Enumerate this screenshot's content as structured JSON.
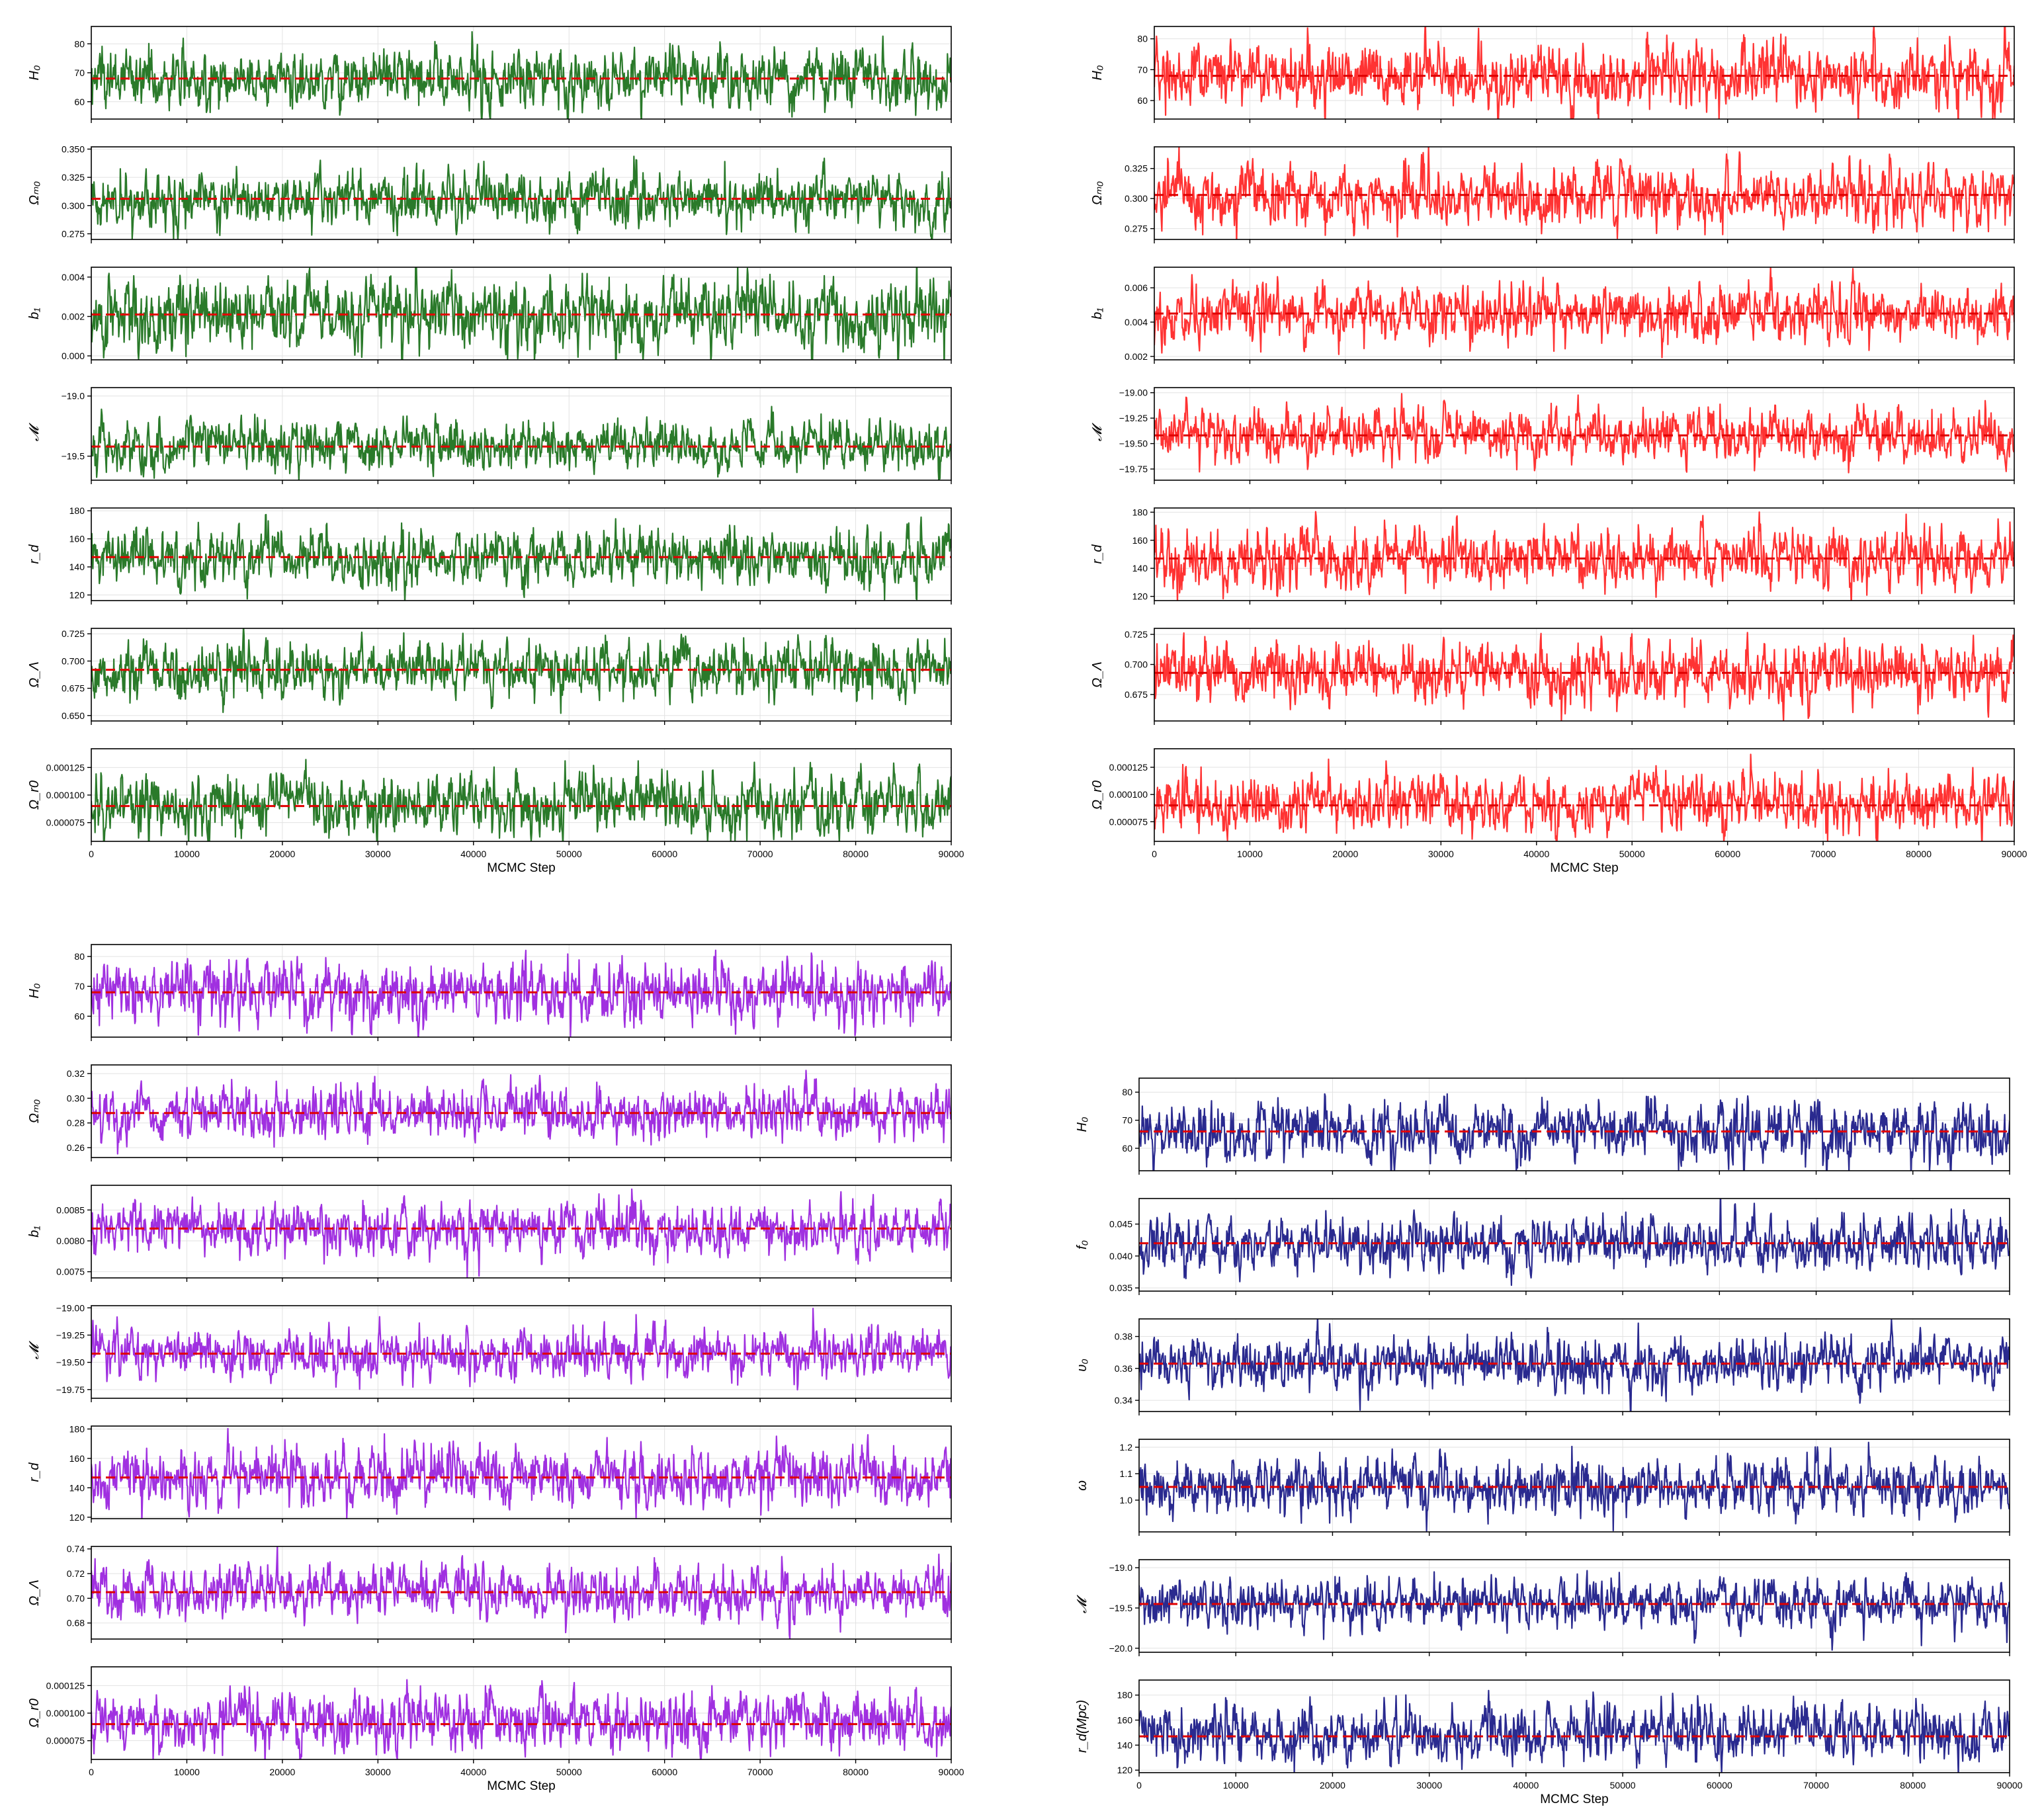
{
  "chart_data": [
    {
      "type": "line",
      "color": "#2a7a2a",
      "xlabel": "MCMC Step",
      "xlim": [
        0,
        90000
      ],
      "xticks": [
        "0",
        "10000",
        "20000",
        "30000",
        "40000",
        "50000",
        "60000",
        "70000",
        "80000",
        "90000"
      ],
      "panels": [
        {
          "ylabel": "H_0",
          "ylabel_display": "H₀",
          "ylim": [
            54,
            86
          ],
          "yticks": [
            "60",
            "70",
            "80"
          ],
          "center": 68,
          "spread": 5,
          "median": 68
        },
        {
          "ylabel": "Ω_m0",
          "ylabel_display": "Ωₘ₀",
          "ylim": [
            0.27,
            0.352
          ],
          "yticks": [
            "0.275",
            "0.300",
            "0.325",
            "0.350"
          ],
          "center": 0.306,
          "spread": 0.012,
          "median": 0.306
        },
        {
          "ylabel": "b_1",
          "ylabel_display": "b₁",
          "ylim": [
            -0.0002,
            0.0045
          ],
          "yticks": [
            "0.000",
            "0.002",
            "0.004"
          ],
          "center": 0.0021,
          "spread": 0.0009,
          "median": 0.0021
        },
        {
          "ylabel": "M",
          "ylabel_display": "𝓜",
          "ylim": [
            -19.7,
            -18.93
          ],
          "yticks": [
            "-19.5",
            "-19.0"
          ],
          "center": -19.42,
          "spread": 0.1,
          "median": -19.42
        },
        {
          "ylabel": "r_d",
          "ylabel_display": "r_d",
          "ylim": [
            116,
            182
          ],
          "yticks": [
            "120",
            "140",
            "160",
            "180"
          ],
          "center": 147,
          "spread": 10,
          "median": 147
        },
        {
          "ylabel": "Ω_Λ",
          "ylabel_display": "Ω_Λ",
          "ylim": [
            0.645,
            0.73
          ],
          "yticks": [
            "0.650",
            "0.675",
            "0.700",
            "0.725"
          ],
          "center": 0.692,
          "spread": 0.012,
          "median": 0.692
        },
        {
          "ylabel": "Ω_r0",
          "ylabel_display": "Ω_r0",
          "ylim": [
            5.8e-05,
            0.000142
          ],
          "yticks": [
            "0.000075",
            "0.000100",
            "0.000125"
          ],
          "center": 9.2e-05,
          "spread": 1.3e-05,
          "median": 9e-05
        }
      ]
    },
    {
      "type": "line",
      "color": "#ff3333",
      "xlabel": "MCMC Step",
      "xlim": [
        0,
        90000
      ],
      "xticks": [
        "0",
        "10000",
        "20000",
        "30000",
        "40000",
        "50000",
        "60000",
        "70000",
        "80000",
        "90000"
      ],
      "panels": [
        {
          "ylabel": "H_0",
          "ylabel_display": "H₀",
          "ylim": [
            54,
            84
          ],
          "yticks": [
            "60",
            "70",
            "80"
          ],
          "center": 68,
          "spread": 5,
          "median": 68
        },
        {
          "ylabel": "Ω_m0",
          "ylabel_display": "Ωₘ₀",
          "ylim": [
            0.266,
            0.343
          ],
          "yticks": [
            "0.275",
            "0.300",
            "0.325"
          ],
          "center": 0.303,
          "spread": 0.012,
          "median": 0.303
        },
        {
          "ylabel": "b_1",
          "ylabel_display": "b₁",
          "ylim": [
            0.0018,
            0.0072
          ],
          "yticks": [
            "0.002",
            "0.004",
            "0.006"
          ],
          "center": 0.0045,
          "spread": 0.0008,
          "median": 0.0045
        },
        {
          "ylabel": "M",
          "ylabel_display": "𝓜",
          "ylim": [
            -19.86,
            -18.95
          ],
          "yticks": [
            "-19.75",
            "-19.50",
            "-19.25",
            "-19.00"
          ],
          "center": -19.42,
          "spread": 0.12,
          "median": -19.42
        },
        {
          "ylabel": "r_d",
          "ylabel_display": "r_d",
          "ylim": [
            117,
            183
          ],
          "yticks": [
            "120",
            "140",
            "160",
            "180"
          ],
          "center": 147,
          "spread": 10,
          "median": 147
        },
        {
          "ylabel": "Ω_Λ",
          "ylabel_display": "Ω_Λ",
          "ylim": [
            0.653,
            0.73
          ],
          "yticks": [
            "0.675",
            "0.700",
            "0.725"
          ],
          "center": 0.693,
          "spread": 0.012,
          "median": 0.693
        },
        {
          "ylabel": "Ω_r0",
          "ylabel_display": "Ω_r0",
          "ylim": [
            5.7e-05,
            0.000142
          ],
          "yticks": [
            "0.000075",
            "0.000100",
            "0.000125"
          ],
          "center": 9.2e-05,
          "spread": 1.3e-05,
          "median": 9e-05
        }
      ]
    },
    {
      "type": "line",
      "color": "#a030e0",
      "xlabel": "MCMC Step",
      "xlim": [
        0,
        90000
      ],
      "xticks": [
        "0",
        "10000",
        "20000",
        "30000",
        "40000",
        "50000",
        "60000",
        "70000",
        "80000",
        "90000"
      ],
      "panels": [
        {
          "ylabel": "H_0",
          "ylabel_display": "H₀",
          "ylim": [
            53,
            84
          ],
          "yticks": [
            "60",
            "70",
            "80"
          ],
          "center": 68,
          "spread": 5,
          "median": 68
        },
        {
          "ylabel": "Ω_m0",
          "ylabel_display": "Ωₘ₀",
          "ylim": [
            0.252,
            0.327
          ],
          "yticks": [
            "0.26",
            "0.28",
            "0.30",
            "0.32"
          ],
          "center": 0.288,
          "spread": 0.01,
          "median": 0.288
        },
        {
          "ylabel": "b_1",
          "ylabel_display": "b₁",
          "ylim": [
            0.0074,
            0.0089
          ],
          "yticks": [
            "0.0075",
            "0.0080",
            "0.0085"
          ],
          "center": 0.0082,
          "spread": 0.0002,
          "median": 0.0082
        },
        {
          "ylabel": "M",
          "ylabel_display": "𝓜",
          "ylim": [
            -19.83,
            -18.98
          ],
          "yticks": [
            "-19.75",
            "-19.50",
            "-19.25",
            "-19.00"
          ],
          "center": -19.42,
          "spread": 0.11,
          "median": -19.42
        },
        {
          "ylabel": "r_d",
          "ylabel_display": "r_d",
          "ylim": [
            119,
            182
          ],
          "yticks": [
            "120",
            "140",
            "160",
            "180"
          ],
          "center": 147,
          "spread": 10,
          "median": 147
        },
        {
          "ylabel": "Ω_Λ",
          "ylabel_display": "Ω_Λ",
          "ylim": [
            0.667,
            0.742
          ],
          "yticks": [
            "0.68",
            "0.70",
            "0.72",
            "0.74"
          ],
          "center": 0.705,
          "spread": 0.01,
          "median": 0.705
        },
        {
          "ylabel": "Ω_r0",
          "ylabel_display": "Ω_r0",
          "ylim": [
            5.8e-05,
            0.000142
          ],
          "yticks": [
            "0.000075",
            "0.000100",
            "0.000125"
          ],
          "center": 9.3e-05,
          "spread": 1.3e-05,
          "median": 9e-05
        }
      ]
    },
    {
      "type": "line",
      "color": "#2a2a8f",
      "xlabel": "MCMC Step",
      "xlim": [
        0,
        90000
      ],
      "xticks": [
        "0",
        "10000",
        "20000",
        "30000",
        "40000",
        "50000",
        "60000",
        "70000",
        "80000",
        "90000"
      ],
      "panels": [
        {
          "ylabel": "H_0",
          "ylabel_display": "H₀",
          "ylim": [
            52,
            85
          ],
          "yticks": [
            "60",
            "70",
            "80"
          ],
          "center": 66,
          "spread": 5,
          "median": 66
        },
        {
          "ylabel": "f_0",
          "ylabel_display": "f₀",
          "ylim": [
            0.0345,
            0.049
          ],
          "yticks": [
            "0.035",
            "0.040",
            "0.045"
          ],
          "center": 0.042,
          "spread": 0.002,
          "median": 0.042
        },
        {
          "ylabel": "υ_0",
          "ylabel_display": "υ₀",
          "ylim": [
            0.333,
            0.391
          ],
          "yticks": [
            "0.34",
            "0.36",
            "0.38"
          ],
          "center": 0.363,
          "spread": 0.008,
          "median": 0.363
        },
        {
          "ylabel": "ω",
          "ylabel_display": "ω",
          "ylim": [
            0.88,
            1.23
          ],
          "yticks": [
            "1.0",
            "1.1",
            "1.2"
          ],
          "center": 1.05,
          "spread": 0.05,
          "median": 1.05
        },
        {
          "ylabel": "M",
          "ylabel_display": "𝓜",
          "ylim": [
            -20.05,
            -18.9
          ],
          "yticks": [
            "-20.0",
            "-19.5",
            "-19.0"
          ],
          "center": -19.45,
          "spread": 0.15,
          "median": -19.45
        },
        {
          "ylabel": "r_d(Mpc)",
          "ylabel_display": "r_d(Mpc)",
          "ylim": [
            118,
            192
          ],
          "yticks": [
            "120",
            "140",
            "160",
            "180"
          ],
          "center": 151,
          "spread": 11,
          "median": 147
        }
      ]
    }
  ]
}
